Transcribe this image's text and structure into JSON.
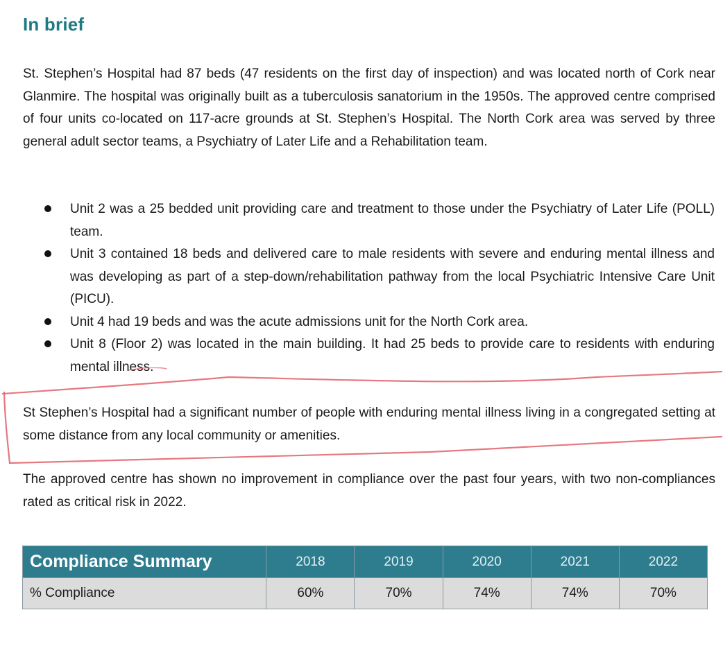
{
  "heading": "In brief",
  "paragraphs": {
    "intro": "St. Stephen’s Hospital had 87 beds (47 residents on the first day of inspection) and was located north of Cork near Glanmire. The hospital was originally built as a tuberculosis sanatorium in the 1950s. The approved centre comprised of four units co-located on 117-acre grounds at St. Stephen’s Hospital. The North Cork area was served by three general adult sector teams, a Psychiatry of Later Life and a Rehabilitation team.",
    "congregated": "St Stephen’s Hospital had a significant number of people with enduring mental illness living in a congregated setting at some distance from any local community or amenities.",
    "improvement": "The approved centre has shown no improvement in compliance over the past four years, with two non-compliances rated as critical risk in 2022."
  },
  "units": [
    "Unit 2 was a 25 bedded unit providing care and treatment to those under the Psychiatry of Later Life (POLL) team.",
    "Unit 3 contained 18 beds and delivered care to male residents with severe and enduring mental illness and was developing as part of a step-down/rehabilitation pathway from the local Psychiatric Intensive Care Unit (PICU).",
    "Unit 4 had 19 beds and was the acute admissions unit for the North Cork area.",
    "Unit 8 (Floor 2) was located in the main building. It had 25 beds  to provide care to residents with enduring mental illness."
  ],
  "compliance_table": {
    "title": "Compliance Summary",
    "years": [
      "2018",
      "2019",
      "2020",
      "2021",
      "2022"
    ],
    "row_label": "% Compliance",
    "values": [
      "60%",
      "70%",
      "74%",
      "74%",
      "70%"
    ]
  },
  "colors": {
    "heading": "#1f7a84",
    "table_header": "#2e7d8f",
    "table_row": "#dcdcdc",
    "annotation": "#e0606a"
  }
}
